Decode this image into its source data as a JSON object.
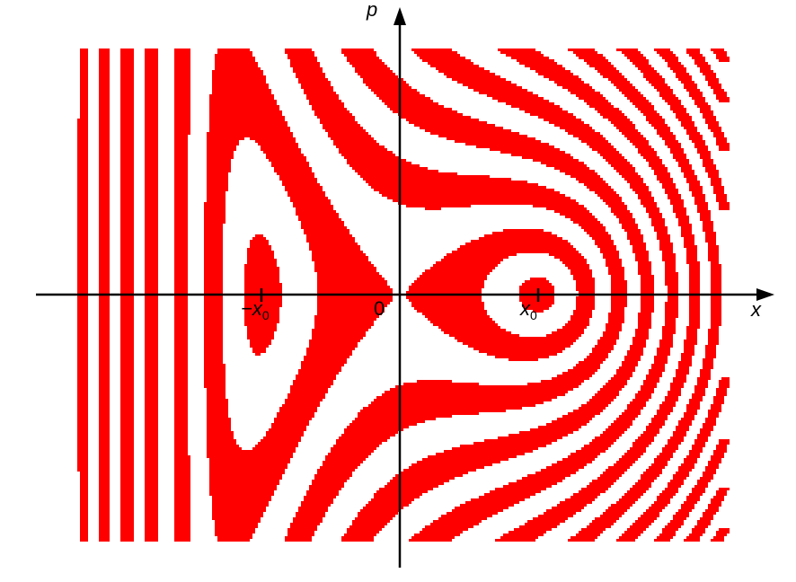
{
  "colors": {
    "stripe": "#ff0000",
    "background": "#ffffff",
    "axis": "#000000"
  },
  "figure": {
    "description_kind": "phase-space double-well energy stripes",
    "stripe_count_visible": 7
  },
  "axes": {
    "x_label": "x",
    "p_label": "p",
    "origin_label": "0",
    "left_tick_prefix": "−x",
    "left_tick_sub": "0",
    "right_tick_main": "x",
    "right_tick_sub": "0"
  }
}
